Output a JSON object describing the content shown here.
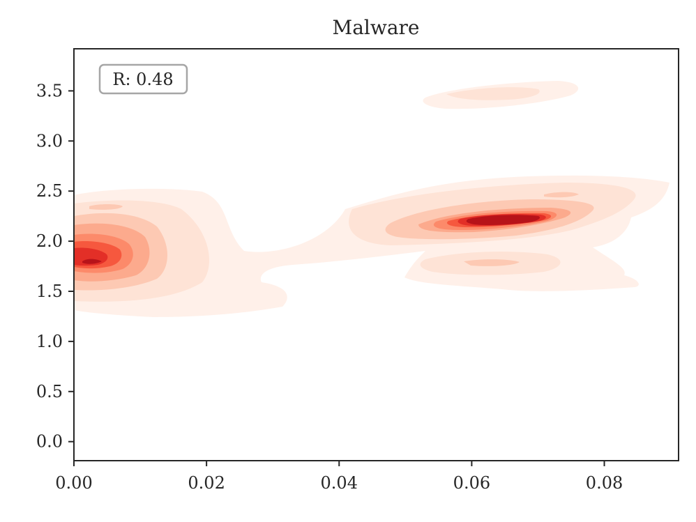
{
  "chart_data": {
    "type": "kde-contour",
    "title": "Malware",
    "xlabel": "",
    "ylabel": "",
    "xlim": [
      0.0,
      0.0912
    ],
    "ylim": [
      -0.19,
      3.92
    ],
    "x_ticks": [
      0.0,
      0.02,
      0.04,
      0.06,
      0.08
    ],
    "x_tick_labels": [
      "0.00",
      "0.02",
      "0.04",
      "0.06",
      "0.08"
    ],
    "y_ticks": [
      0.0,
      0.5,
      1.0,
      1.5,
      2.0,
      2.5,
      3.0,
      3.5
    ],
    "y_tick_labels": [
      "0.0",
      "0.5",
      "1.0",
      "1.5",
      "2.0",
      "2.5",
      "3.0",
      "3.5"
    ],
    "grid": false,
    "annotation": "R: 0.48",
    "colormap": "Reds",
    "level_colors": [
      "#fff0e9",
      "#fee3d6",
      "#fdc9b3",
      "#fcaa8d",
      "#fc8a6a",
      "#f6583e",
      "#e32f27",
      "#b71319"
    ],
    "density_peaks": [
      {
        "x": 0.0025,
        "y": 1.8,
        "relative_density": 1.0
      },
      {
        "x": 0.066,
        "y": 2.22,
        "relative_density": 0.95
      },
      {
        "x": 0.006,
        "y": 2.35,
        "relative_density": 0.2
      },
      {
        "x": 0.064,
        "y": 1.78,
        "relative_density": 0.2
      },
      {
        "x": 0.075,
        "y": 2.49,
        "relative_density": 0.2
      },
      {
        "x": 0.063,
        "y": 3.47,
        "relative_density": 0.12
      }
    ]
  }
}
